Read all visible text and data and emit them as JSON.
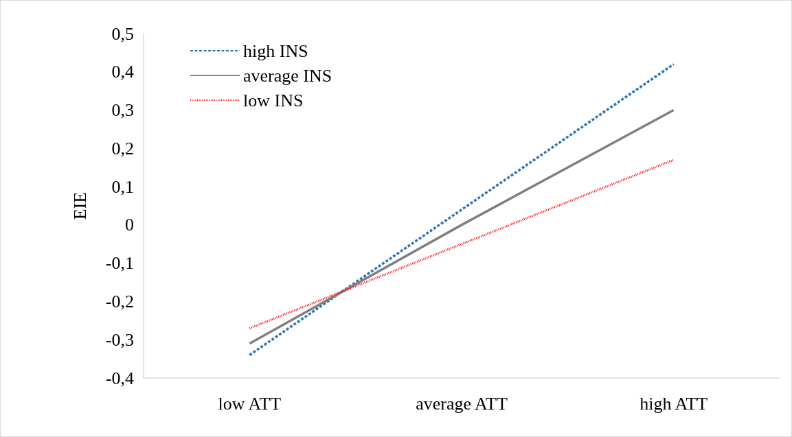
{
  "chart_data": {
    "type": "line",
    "ylabel": "EIE",
    "categories": [
      "low ATT",
      "average ATT",
      "high ATT"
    ],
    "series": [
      {
        "name": "high INS",
        "color": "#2e75b6",
        "line_style": "dashed",
        "values": [
          -0.34,
          0.04,
          0.42
        ]
      },
      {
        "name": "average INS",
        "color": "#808080",
        "line_style": "solid",
        "values": [
          -0.31,
          0.0,
          0.3
        ]
      },
      {
        "name": "low INS",
        "color": "#ff0000",
        "line_style": "dotted",
        "values": [
          -0.27,
          -0.05,
          0.17
        ]
      }
    ],
    "ylim": [
      -0.4,
      0.5
    ],
    "yticks": [
      {
        "value": -0.4,
        "label": "-0,4"
      },
      {
        "value": -0.3,
        "label": "-0,3"
      },
      {
        "value": -0.2,
        "label": "-0,2"
      },
      {
        "value": -0.1,
        "label": "-0,1"
      },
      {
        "value": 0,
        "label": "0"
      },
      {
        "value": 0.1,
        "label": "0,1"
      },
      {
        "value": 0.2,
        "label": "0,2"
      },
      {
        "value": 0.3,
        "label": "0,3"
      },
      {
        "value": 0.4,
        "label": "0,4"
      },
      {
        "value": 0.5,
        "label": "0,5"
      }
    ],
    "grid": false,
    "legend": "top left",
    "marker": "none"
  }
}
